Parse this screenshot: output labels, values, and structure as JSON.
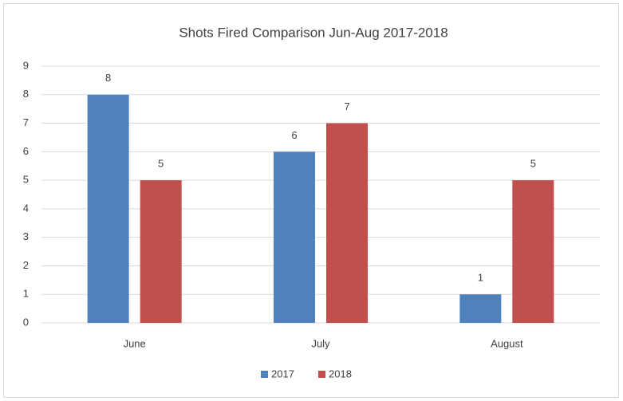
{
  "chart_data": {
    "type": "bar",
    "title": "Shots Fired Comparison Jun-Aug 2017-2018",
    "categories": [
      "June",
      "July",
      "August"
    ],
    "series": [
      {
        "name": "2017",
        "color": "#4f81bd",
        "values": [
          8,
          6,
          1
        ]
      },
      {
        "name": "2018",
        "color": "#c0504d",
        "values": [
          5,
          7,
          5
        ]
      }
    ],
    "ylim": [
      0,
      9
    ],
    "yticks": [
      0,
      1,
      2,
      3,
      4,
      5,
      6,
      7,
      8,
      9
    ],
    "grid": true,
    "legend": "bottom"
  }
}
